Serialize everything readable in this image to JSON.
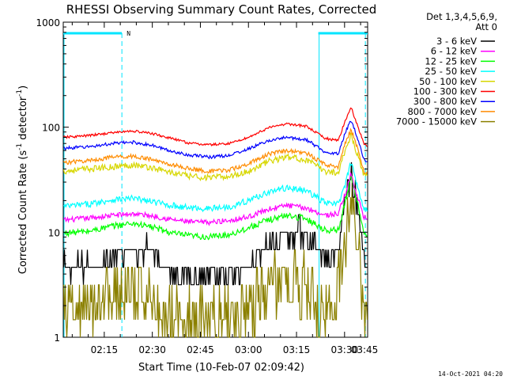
{
  "chart_data": {
    "type": "line",
    "title": "RHESSI Observing Summary Count Rates, Corrected",
    "xlabel": "Start Time (10-Feb-07 02:09:42)",
    "ylabel_main": "Corrected Count Rate (s",
    "ylabel_sup1": "-1",
    "ylabel_mid": " detector",
    "ylabel_sup2": "-1",
    "ylabel_end": ")",
    "y_scale": "log",
    "ylim": [
      1,
      1000
    ],
    "xlim_minutes": [
      2.2,
      97.2
    ],
    "x_ticks": [
      {
        "label": "02:15",
        "min": 15
      },
      {
        "label": "02:30",
        "min": 30
      },
      {
        "label": "02:45",
        "min": 45
      },
      {
        "label": "03:00",
        "min": 60
      },
      {
        "label": "03:15",
        "min": 75
      },
      {
        "label": "03:30",
        "min": 90
      },
      {
        "label": "03:45",
        "min": 105
      }
    ],
    "y_ticks": [
      {
        "label": "1",
        "value": 1
      },
      {
        "label": "10",
        "value": 10
      },
      {
        "label": "100",
        "value": 100
      },
      {
        "label": "1000",
        "value": 1000
      }
    ],
    "legend": {
      "header1": "Det 1,3,4,5,6,9,",
      "header2": "Att 0",
      "placement": "right"
    },
    "status_bars": {
      "color": "#00e5ff",
      "segments_min": [
        [
          2.2,
          20.5
        ],
        [
          81.8,
          97.2
        ]
      ],
      "dashed_lines_min": [
        20.5,
        96.5
      ],
      "solid_lines_min": [
        2.2,
        81.8
      ],
      "flag_label": "N",
      "flag_min": 22
    },
    "series": [
      {
        "name": "3 - 6 keV",
        "color": "#000000",
        "points": [
          [
            2,
            4.5
          ],
          [
            10,
            4.6
          ],
          [
            16,
            5.2
          ],
          [
            22,
            6.6
          ],
          [
            26,
            6.8
          ],
          [
            30,
            7.2
          ],
          [
            34,
            4.8
          ],
          [
            40,
            4.1
          ],
          [
            46,
            3.6
          ],
          [
            52,
            3.6
          ],
          [
            58,
            4.2
          ],
          [
            64,
            6.5
          ],
          [
            70,
            9.0
          ],
          [
            76,
            10.0
          ],
          [
            80,
            8.6
          ],
          [
            84,
            5.0
          ],
          [
            88,
            6.5
          ],
          [
            90,
            20
          ],
          [
            92,
            34
          ],
          [
            94,
            18
          ],
          [
            96,
            6
          ],
          [
            97,
            4.8
          ]
        ]
      },
      {
        "name": "6 - 12 keV",
        "color": "#ff00ff",
        "points": [
          [
            2,
            13
          ],
          [
            10,
            13.6
          ],
          [
            18,
            14.5
          ],
          [
            24,
            15
          ],
          [
            30,
            14.3
          ],
          [
            36,
            13.2
          ],
          [
            42,
            12.5
          ],
          [
            48,
            12.4
          ],
          [
            54,
            13
          ],
          [
            60,
            14
          ],
          [
            66,
            16.5
          ],
          [
            72,
            18
          ],
          [
            78,
            17
          ],
          [
            84,
            14.5
          ],
          [
            88,
            15
          ],
          [
            90,
            22
          ],
          [
            92,
            36
          ],
          [
            94,
            22
          ],
          [
            96,
            14
          ],
          [
            97,
            13.5
          ]
        ]
      },
      {
        "name": "12 - 25 keV",
        "color": "#00ff00",
        "points": [
          [
            2,
            9.8
          ],
          [
            10,
            10.2
          ],
          [
            18,
            11.5
          ],
          [
            24,
            12.2
          ],
          [
            30,
            11.2
          ],
          [
            36,
            9.8
          ],
          [
            42,
            9.2
          ],
          [
            48,
            9
          ],
          [
            54,
            9.5
          ],
          [
            60,
            11
          ],
          [
            66,
            13
          ],
          [
            72,
            14.5
          ],
          [
            78,
            13.5
          ],
          [
            84,
            10.5
          ],
          [
            88,
            10.5
          ],
          [
            90,
            18
          ],
          [
            92,
            34
          ],
          [
            94,
            20
          ],
          [
            96,
            9.5
          ],
          [
            97,
            9
          ]
        ]
      },
      {
        "name": "25 - 50 keV",
        "color": "#00ffff",
        "points": [
          [
            2,
            17.5
          ],
          [
            10,
            18.5
          ],
          [
            18,
            20.5
          ],
          [
            24,
            21
          ],
          [
            30,
            19.5
          ],
          [
            36,
            18
          ],
          [
            42,
            17
          ],
          [
            48,
            16.8
          ],
          [
            54,
            17.5
          ],
          [
            60,
            20
          ],
          [
            66,
            24
          ],
          [
            72,
            26.5
          ],
          [
            78,
            25
          ],
          [
            84,
            19
          ],
          [
            88,
            18.5
          ],
          [
            90,
            27
          ],
          [
            92,
            46
          ],
          [
            94,
            28
          ],
          [
            96,
            17
          ],
          [
            97,
            16.5
          ]
        ]
      },
      {
        "name": "50 - 100 keV",
        "color": "#d7d700",
        "points": [
          [
            2,
            38
          ],
          [
            10,
            40
          ],
          [
            18,
            42
          ],
          [
            24,
            44
          ],
          [
            30,
            41
          ],
          [
            36,
            37
          ],
          [
            42,
            34
          ],
          [
            48,
            33
          ],
          [
            54,
            34
          ],
          [
            60,
            38
          ],
          [
            66,
            47
          ],
          [
            72,
            52
          ],
          [
            78,
            49
          ],
          [
            84,
            38
          ],
          [
            88,
            37
          ],
          [
            90,
            58
          ],
          [
            92,
            85
          ],
          [
            94,
            55
          ],
          [
            96,
            36
          ],
          [
            97,
            34
          ]
        ]
      },
      {
        "name": "100 - 300 keV",
        "color": "#ff0000",
        "points": [
          [
            2,
            80
          ],
          [
            10,
            83
          ],
          [
            18,
            89
          ],
          [
            24,
            92
          ],
          [
            30,
            87
          ],
          [
            36,
            78
          ],
          [
            42,
            70
          ],
          [
            48,
            68
          ],
          [
            54,
            70
          ],
          [
            60,
            80
          ],
          [
            66,
            98
          ],
          [
            72,
            108
          ],
          [
            78,
            102
          ],
          [
            84,
            78
          ],
          [
            88,
            75
          ],
          [
            90,
            110
          ],
          [
            92,
            155
          ],
          [
            94,
            105
          ],
          [
            96,
            70
          ],
          [
            97,
            67
          ]
        ]
      },
      {
        "name": "300 - 800 keV",
        "color": "#0000ff",
        "points": [
          [
            2,
            63
          ],
          [
            10,
            65
          ],
          [
            18,
            70
          ],
          [
            24,
            72
          ],
          [
            30,
            67
          ],
          [
            36,
            59
          ],
          [
            42,
            54
          ],
          [
            48,
            52
          ],
          [
            54,
            54
          ],
          [
            60,
            62
          ],
          [
            66,
            74
          ],
          [
            72,
            80
          ],
          [
            78,
            76
          ],
          [
            84,
            58
          ],
          [
            88,
            56
          ],
          [
            90,
            85
          ],
          [
            92,
            118
          ],
          [
            94,
            80
          ],
          [
            96,
            50
          ],
          [
            97,
            47
          ]
        ]
      },
      {
        "name": "800 - 7000 keV",
        "color": "#ff8c00",
        "points": [
          [
            2,
            46
          ],
          [
            10,
            48
          ],
          [
            18,
            52
          ],
          [
            24,
            53
          ],
          [
            30,
            49
          ],
          [
            36,
            44
          ],
          [
            42,
            40
          ],
          [
            48,
            38
          ],
          [
            54,
            39
          ],
          [
            60,
            45
          ],
          [
            66,
            55
          ],
          [
            72,
            60
          ],
          [
            78,
            57
          ],
          [
            84,
            44
          ],
          [
            88,
            42
          ],
          [
            90,
            68
          ],
          [
            92,
            95
          ],
          [
            94,
            64
          ],
          [
            96,
            38
          ],
          [
            97,
            36
          ]
        ]
      },
      {
        "name": "7000 - 15000 keV",
        "color": "#8b8000",
        "points": [
          [
            2,
            1.6
          ],
          [
            8,
            1.6
          ],
          [
            14,
            2.6
          ],
          [
            20,
            2.7
          ],
          [
            26,
            2.8
          ],
          [
            30,
            2.7
          ],
          [
            33,
            1.6
          ],
          [
            40,
            1.5
          ],
          [
            46,
            1.5
          ],
          [
            52,
            1.6
          ],
          [
            58,
            1.8
          ],
          [
            64,
            2.3
          ],
          [
            68,
            3.3
          ],
          [
            74,
            3.4
          ],
          [
            78,
            3.1
          ],
          [
            82,
            1.7
          ],
          [
            86,
            1.9
          ],
          [
            88,
            2.6
          ],
          [
            90,
            8
          ],
          [
            92,
            28
          ],
          [
            94,
            9
          ],
          [
            96,
            1.6
          ],
          [
            97,
            1.5
          ]
        ]
      }
    ]
  },
  "footer": {
    "timestamp": "14-Oct-2021 04:20"
  }
}
